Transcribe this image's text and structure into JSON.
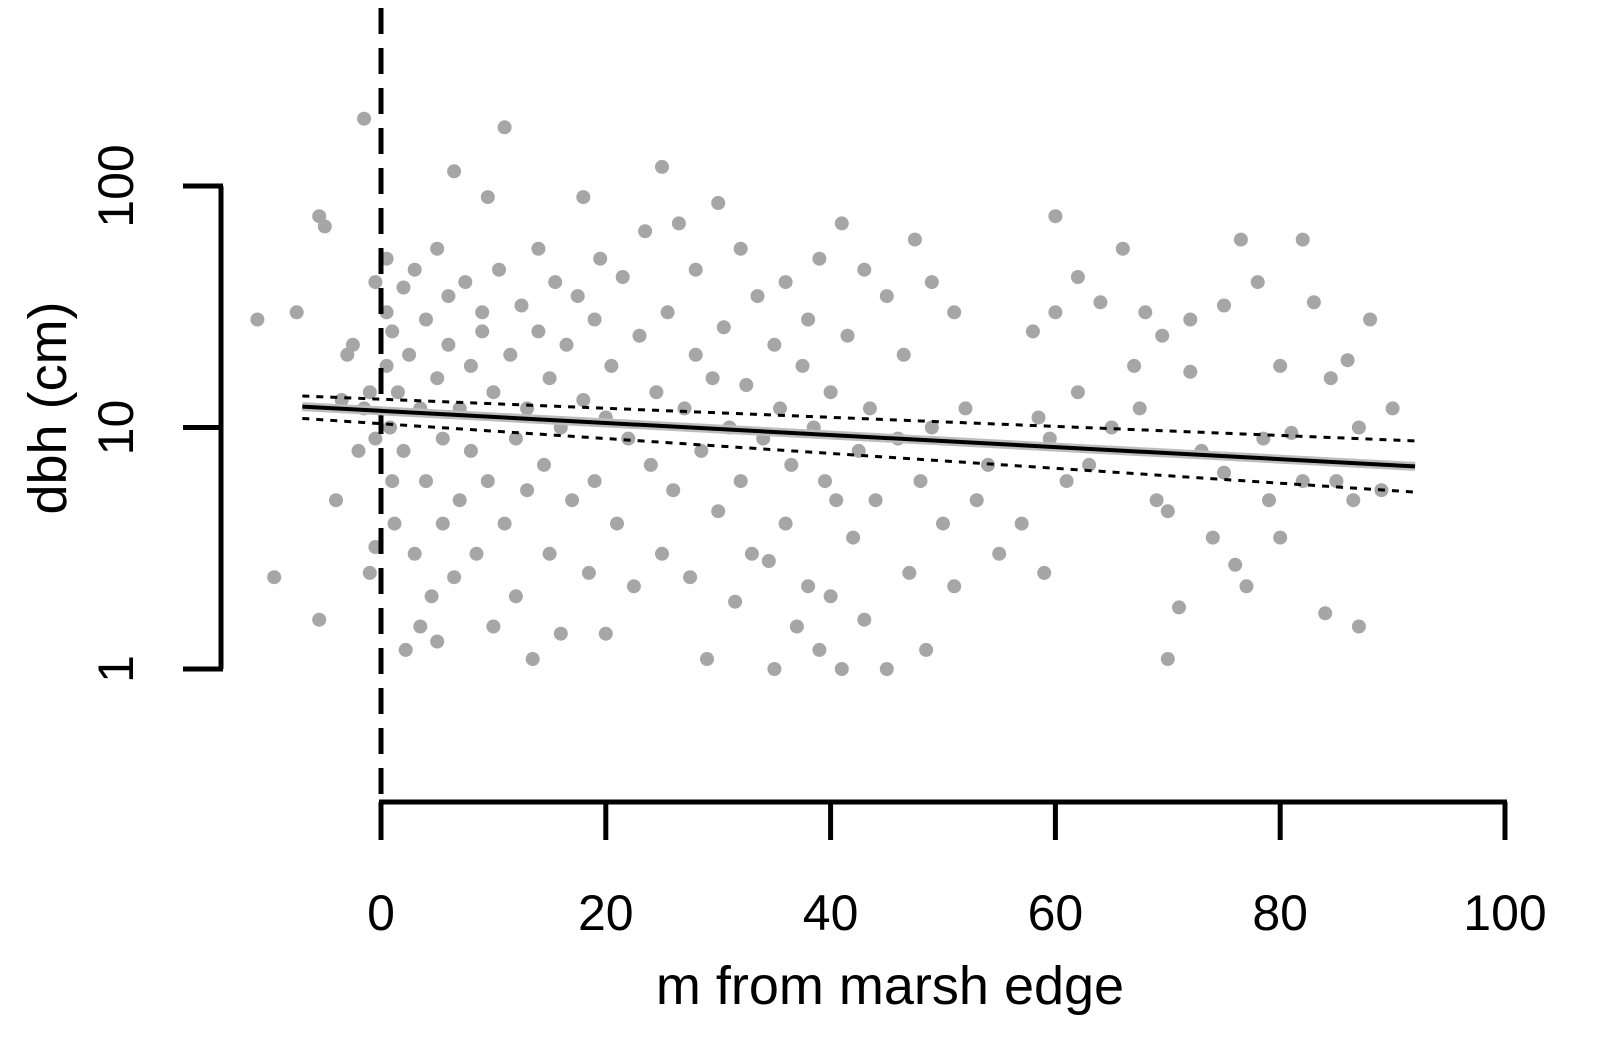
{
  "chart_data": {
    "type": "scatter",
    "title": "",
    "xlabel": "m from marsh edge",
    "ylabel": "dbh (cm)",
    "xlim": [
      -11,
      101
    ],
    "ylim": [
      0.65,
      210
    ],
    "x_ticks": [
      0,
      20,
      40,
      60,
      80,
      100
    ],
    "x_tick_labels": [
      "0",
      "20",
      "40",
      "60",
      "80",
      "100"
    ],
    "y_ticks": [
      1,
      10,
      100
    ],
    "y_tick_labels": [
      "1",
      "10",
      "100"
    ],
    "y_scale": "log",
    "grid": false,
    "legend": "none",
    "reference_line": {
      "x": 0,
      "style": "dashed"
    },
    "fit": {
      "x": [
        -7,
        92
      ],
      "y": [
        12.2,
        6.9
      ],
      "ci_upper": [
        13.5,
        8.8
      ],
      "ci_lower": [
        10.9,
        5.4
      ]
    },
    "series": [
      {
        "points": [
          [
            -11,
            28
          ],
          [
            -9.5,
            2.4
          ],
          [
            -7.5,
            30
          ],
          [
            -5.5,
            75
          ],
          [
            -5,
            68
          ],
          [
            -5.5,
            1.6
          ],
          [
            -4,
            5
          ],
          [
            -3.5,
            13
          ],
          [
            -3,
            20
          ],
          [
            -2.5,
            22
          ],
          [
            -2,
            8
          ],
          [
            -1.5,
            12
          ],
          [
            -1,
            14
          ],
          [
            -1,
            2.5
          ],
          [
            -0.5,
            40
          ],
          [
            -0.5,
            9
          ],
          [
            -1.5,
            190
          ],
          [
            -0.5,
            3.2
          ],
          [
            0.5,
            50
          ],
          [
            0.5,
            30
          ],
          [
            0.5,
            18
          ],
          [
            0.8,
            10
          ],
          [
            1,
            25
          ],
          [
            1,
            6
          ],
          [
            1.2,
            4
          ],
          [
            1.5,
            14
          ],
          [
            2,
            38
          ],
          [
            2,
            8
          ],
          [
            2.2,
            1.2
          ],
          [
            2.5,
            20
          ],
          [
            3,
            45
          ],
          [
            3,
            3
          ],
          [
            3.5,
            12
          ],
          [
            3.5,
            1.5
          ],
          [
            4,
            28
          ],
          [
            4,
            6
          ],
          [
            4.5,
            2
          ],
          [
            5,
            55
          ],
          [
            5,
            16
          ],
          [
            5,
            1.3
          ],
          [
            5.5,
            9
          ],
          [
            5.5,
            4
          ],
          [
            6,
            35
          ],
          [
            6,
            22
          ],
          [
            6.5,
            115
          ],
          [
            6.5,
            2.4
          ],
          [
            7,
            12
          ],
          [
            7,
            5
          ],
          [
            7.5,
            40
          ],
          [
            8,
            18
          ],
          [
            8,
            8
          ],
          [
            8.5,
            3
          ],
          [
            9,
            30
          ],
          [
            9,
            25
          ],
          [
            9.5,
            90
          ],
          [
            9.5,
            6
          ],
          [
            10,
            14
          ],
          [
            10,
            1.5
          ],
          [
            10.5,
            45
          ],
          [
            11,
            175
          ],
          [
            11,
            4
          ],
          [
            11.5,
            20
          ],
          [
            12,
            9
          ],
          [
            12,
            2
          ],
          [
            12.5,
            32
          ],
          [
            13,
            12
          ],
          [
            13,
            5.5
          ],
          [
            13.5,
            1.1
          ],
          [
            14,
            25
          ],
          [
            14,
            55
          ],
          [
            14.5,
            7
          ],
          [
            15,
            16
          ],
          [
            15,
            3
          ],
          [
            15.5,
            40
          ],
          [
            16,
            10
          ],
          [
            16,
            1.4
          ],
          [
            16.5,
            22
          ],
          [
            17,
            5
          ],
          [
            17.5,
            35
          ],
          [
            18,
            90
          ],
          [
            18,
            13
          ],
          [
            18.5,
            2.5
          ],
          [
            19,
            28
          ],
          [
            19,
            6
          ],
          [
            19.5,
            50
          ],
          [
            20,
            11
          ],
          [
            20,
            1.4
          ],
          [
            20.5,
            18
          ],
          [
            21,
            4
          ],
          [
            21.5,
            42
          ],
          [
            22,
            9
          ],
          [
            22.5,
            2.2
          ],
          [
            23,
            24
          ],
          [
            23.5,
            65
          ],
          [
            24,
            7
          ],
          [
            24.5,
            14
          ],
          [
            25,
            120
          ],
          [
            25,
            3
          ],
          [
            25.5,
            30
          ],
          [
            26,
            5.5
          ],
          [
            26.5,
            70
          ],
          [
            27,
            12
          ],
          [
            27.5,
            2.4
          ],
          [
            28,
            20
          ],
          [
            28,
            45
          ],
          [
            28.5,
            8
          ],
          [
            29,
            1.1
          ],
          [
            29.5,
            16
          ],
          [
            30,
            85
          ],
          [
            30,
            4.5
          ],
          [
            30.5,
            26
          ],
          [
            31,
            10
          ],
          [
            31.5,
            1.9
          ],
          [
            32,
            55
          ],
          [
            32,
            6
          ],
          [
            32.5,
            15
          ],
          [
            33,
            3
          ],
          [
            33.5,
            35
          ],
          [
            34,
            9
          ],
          [
            34.5,
            2.8
          ],
          [
            35,
            22
          ],
          [
            35,
            1.0
          ],
          [
            35.5,
            12
          ],
          [
            36,
            40
          ],
          [
            36,
            4
          ],
          [
            36.5,
            7
          ],
          [
            37,
            1.5
          ],
          [
            37.5,
            18
          ],
          [
            38,
            28
          ],
          [
            38,
            2.2
          ],
          [
            38.5,
            10
          ],
          [
            39,
            50
          ],
          [
            39,
            1.2
          ],
          [
            39.5,
            6
          ],
          [
            40,
            14
          ],
          [
            40,
            2
          ],
          [
            40.5,
            5
          ],
          [
            41,
            70
          ],
          [
            41,
            1.0
          ],
          [
            41.5,
            24
          ],
          [
            42,
            3.5
          ],
          [
            42.5,
            8
          ],
          [
            43,
            45
          ],
          [
            43,
            1.6
          ],
          [
            43.5,
            12
          ],
          [
            44,
            5
          ],
          [
            45,
            1.0
          ],
          [
            45,
            35
          ],
          [
            46,
            9
          ],
          [
            46.5,
            20
          ],
          [
            47,
            2.5
          ],
          [
            47.5,
            60
          ],
          [
            48,
            6
          ],
          [
            48.5,
            1.2
          ],
          [
            49,
            40
          ],
          [
            49,
            10
          ],
          [
            50,
            4
          ],
          [
            51,
            30
          ],
          [
            51,
            2.2
          ],
          [
            52,
            12
          ],
          [
            53,
            5
          ],
          [
            54,
            7
          ],
          [
            55,
            3
          ],
          [
            57,
            4
          ],
          [
            58,
            25
          ],
          [
            58.5,
            11
          ],
          [
            59,
            2.5
          ],
          [
            59.5,
            9
          ],
          [
            60,
            75
          ],
          [
            60,
            30
          ],
          [
            61,
            6
          ],
          [
            62,
            42
          ],
          [
            62,
            14
          ],
          [
            63,
            7
          ],
          [
            64,
            33
          ],
          [
            65,
            10
          ],
          [
            66,
            55
          ],
          [
            67,
            18
          ],
          [
            67.5,
            12
          ],
          [
            68,
            30
          ],
          [
            69,
            5
          ],
          [
            69.5,
            24
          ],
          [
            70,
            1.1
          ],
          [
            70,
            4.5
          ],
          [
            71,
            1.8
          ],
          [
            72,
            28
          ],
          [
            72,
            17
          ],
          [
            73,
            8
          ],
          [
            74,
            3.5
          ],
          [
            75,
            32
          ],
          [
            75,
            6.5
          ],
          [
            76,
            2.7
          ],
          [
            76.5,
            60
          ],
          [
            77,
            2.2
          ],
          [
            78,
            40
          ],
          [
            78.5,
            9
          ],
          [
            79,
            5
          ],
          [
            80,
            18
          ],
          [
            80,
            3.5
          ],
          [
            81,
            9.5
          ],
          [
            82,
            6
          ],
          [
            82,
            60
          ],
          [
            83,
            33
          ],
          [
            84,
            1.7
          ],
          [
            84.5,
            16
          ],
          [
            85,
            6
          ],
          [
            86,
            19
          ],
          [
            86.5,
            5
          ],
          [
            87,
            1.5
          ],
          [
            87,
            10
          ],
          [
            88,
            28
          ],
          [
            89,
            5.5
          ],
          [
            90,
            12
          ]
        ]
      }
    ]
  }
}
